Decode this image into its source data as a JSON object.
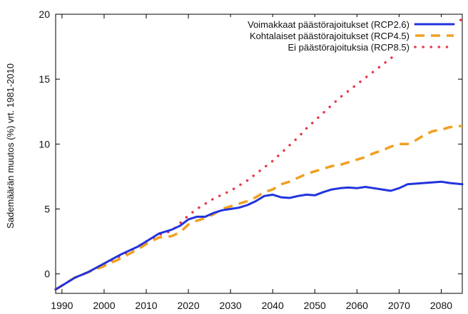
{
  "chart_data": {
    "type": "line",
    "title": "",
    "xlabel": "",
    "ylabel": "Sademäärän muutos (%) vrt. 1981-2010",
    "xlim": [
      1988.5,
      2085
    ],
    "ylim": [
      -1.5,
      20
    ],
    "x_ticks": [
      1990,
      2000,
      2010,
      2020,
      2030,
      2040,
      2050,
      2060,
      2070,
      2080
    ],
    "y_ticks": [
      0,
      5,
      10,
      15,
      20
    ],
    "grid": false,
    "legend_position": "top-right",
    "series": [
      {
        "name": "Voimakkaat päästörajoitukset (RCP2.6)",
        "color": "#2233dd",
        "style": "solid",
        "points": [
          [
            1988.5,
            -1.2
          ],
          [
            1990,
            -0.9
          ],
          [
            1993,
            -0.3
          ],
          [
            1996,
            0.1
          ],
          [
            2000,
            0.8
          ],
          [
            2004,
            1.5
          ],
          [
            2008,
            2.1
          ],
          [
            2010,
            2.5
          ],
          [
            2013,
            3.1
          ],
          [
            2016,
            3.4
          ],
          [
            2018,
            3.7
          ],
          [
            2020,
            4.2
          ],
          [
            2022,
            4.4
          ],
          [
            2024,
            4.4
          ],
          [
            2026,
            4.7
          ],
          [
            2028,
            4.9
          ],
          [
            2030,
            5.0
          ],
          [
            2032,
            5.1
          ],
          [
            2034,
            5.3
          ],
          [
            2036,
            5.6
          ],
          [
            2038,
            6.0
          ],
          [
            2040,
            6.1
          ],
          [
            2042,
            5.9
          ],
          [
            2044,
            5.85
          ],
          [
            2046,
            6.0
          ],
          [
            2048,
            6.1
          ],
          [
            2050,
            6.05
          ],
          [
            2052,
            6.3
          ],
          [
            2054,
            6.5
          ],
          [
            2056,
            6.6
          ],
          [
            2058,
            6.65
          ],
          [
            2060,
            6.6
          ],
          [
            2062,
            6.7
          ],
          [
            2064,
            6.6
          ],
          [
            2066,
            6.5
          ],
          [
            2068,
            6.4
          ],
          [
            2070,
            6.6
          ],
          [
            2072,
            6.9
          ],
          [
            2074,
            6.95
          ],
          [
            2076,
            7.0
          ],
          [
            2078,
            7.05
          ],
          [
            2080,
            7.1
          ],
          [
            2082,
            7.0
          ],
          [
            2085,
            6.9
          ]
        ]
      },
      {
        "name": "Kohtalaiset päästörajoitukset (RCP4.5)",
        "color": "#f0a020",
        "style": "dashed",
        "points": [
          [
            1988.5,
            -1.2
          ],
          [
            1990,
            -0.9
          ],
          [
            1993,
            -0.3
          ],
          [
            1996,
            0.1
          ],
          [
            2000,
            0.6
          ],
          [
            2004,
            1.2
          ],
          [
            2008,
            1.9
          ],
          [
            2010,
            2.3
          ],
          [
            2013,
            2.8
          ],
          [
            2016,
            2.9
          ],
          [
            2018,
            3.2
          ],
          [
            2020,
            3.8
          ],
          [
            2022,
            4.1
          ],
          [
            2024,
            4.3
          ],
          [
            2026,
            4.6
          ],
          [
            2028,
            5.0
          ],
          [
            2030,
            5.2
          ],
          [
            2032,
            5.4
          ],
          [
            2034,
            5.6
          ],
          [
            2036,
            5.9
          ],
          [
            2038,
            6.3
          ],
          [
            2040,
            6.5
          ],
          [
            2042,
            6.9
          ],
          [
            2044,
            7.1
          ],
          [
            2046,
            7.4
          ],
          [
            2048,
            7.7
          ],
          [
            2050,
            7.9
          ],
          [
            2052,
            8.1
          ],
          [
            2054,
            8.3
          ],
          [
            2056,
            8.4
          ],
          [
            2058,
            8.6
          ],
          [
            2060,
            8.8
          ],
          [
            2062,
            9.0
          ],
          [
            2064,
            9.3
          ],
          [
            2066,
            9.5
          ],
          [
            2068,
            9.8
          ],
          [
            2070,
            10.0
          ],
          [
            2072,
            10.0
          ],
          [
            2074,
            10.3
          ],
          [
            2076,
            10.7
          ],
          [
            2078,
            11.0
          ],
          [
            2080,
            11.1
          ],
          [
            2082,
            11.3
          ],
          [
            2085,
            11.4
          ]
        ]
      },
      {
        "name": "Ei päästörajoituksia (RCP8.5)",
        "color": "#e8384a",
        "style": "dotted",
        "points": [
          [
            1988.5,
            -1.2
          ],
          [
            1990,
            -0.9
          ],
          [
            1993,
            -0.3
          ],
          [
            1996,
            0.1
          ],
          [
            2000,
            0.7
          ],
          [
            2004,
            1.4
          ],
          [
            2008,
            2.1
          ],
          [
            2010,
            2.5
          ],
          [
            2013,
            3.0
          ],
          [
            2016,
            3.3
          ],
          [
            2018,
            3.9
          ],
          [
            2020,
            4.5
          ],
          [
            2022,
            5.0
          ],
          [
            2024,
            5.4
          ],
          [
            2026,
            5.8
          ],
          [
            2028,
            6.1
          ],
          [
            2030,
            6.4
          ],
          [
            2032,
            6.8
          ],
          [
            2034,
            7.2
          ],
          [
            2036,
            7.7
          ],
          [
            2038,
            8.2
          ],
          [
            2040,
            8.7
          ],
          [
            2042,
            9.3
          ],
          [
            2044,
            9.9
          ],
          [
            2046,
            10.5
          ],
          [
            2048,
            11.2
          ],
          [
            2050,
            11.8
          ],
          [
            2052,
            12.4
          ],
          [
            2054,
            13.0
          ],
          [
            2056,
            13.6
          ],
          [
            2058,
            14.1
          ],
          [
            2060,
            14.6
          ],
          [
            2062,
            15.1
          ],
          [
            2064,
            15.6
          ],
          [
            2066,
            16.1
          ],
          [
            2068,
            16.6
          ],
          [
            2070,
            17.1
          ],
          [
            2072,
            17.6
          ],
          [
            2074,
            18.0
          ],
          [
            2076,
            18.4
          ],
          [
            2078,
            18.7
          ],
          [
            2080,
            19.0
          ],
          [
            2082,
            19.3
          ],
          [
            2085,
            19.6
          ]
        ]
      }
    ]
  }
}
